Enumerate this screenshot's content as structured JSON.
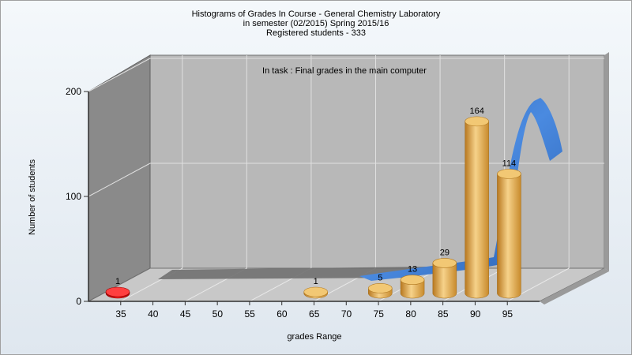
{
  "chart_data": {
    "type": "bar",
    "title_lines": [
      "Histograms of Grades  In Course - General Chemistry Laboratory",
      "in semester  (02/2015) Spring 2015/16",
      "Registered students - 333"
    ],
    "annotation": "In task : Final grades in the main computer",
    "xlabel": "grades Range",
    "ylabel": "Number of students",
    "x_ticks": [
      "35",
      "40",
      "45",
      "50",
      "55",
      "60",
      "65",
      "70",
      "75",
      "80",
      "85",
      "90",
      "95"
    ],
    "y_ticks": [
      0,
      100,
      200
    ],
    "ylim": [
      0,
      200
    ],
    "bars": [
      {
        "x": "35",
        "value": 1,
        "label": "1",
        "color": "#e00000"
      },
      {
        "x": "65",
        "value": 1,
        "label": "1",
        "color": "#e0a040"
      },
      {
        "x": "75",
        "value": 5,
        "label": "5",
        "color": "#e0a040"
      },
      {
        "x": "80",
        "value": 13,
        "label": "13",
        "color": "#e0a040"
      },
      {
        "x": "85",
        "value": 29,
        "label": "29",
        "color": "#e0a040"
      },
      {
        "x": "90",
        "value": 164,
        "label": "164",
        "color": "#e0a040"
      },
      {
        "x": "95",
        "value": 114,
        "label": "114",
        "color": "#e0a040"
      }
    ],
    "distribution_curve": {
      "color": "#3a78cc"
    },
    "back_series": {
      "color": "#707070"
    },
    "grid": true,
    "chart_style": "3d"
  }
}
